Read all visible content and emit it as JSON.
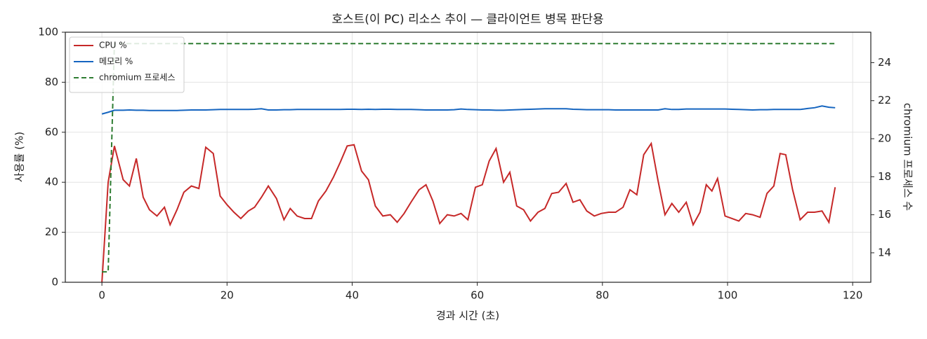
{
  "chart_data": {
    "type": "line",
    "title": "호스트(이 PC) 리소스 추이 — 클라이언트 병목 판단용",
    "x_label": "경과 시간 (초)",
    "y_label": "사용률 (%)",
    "y2_label": "chromium 프로세스 수",
    "x": [
      0,
      1.0,
      2.0,
      3.4,
      4.4,
      5.5,
      6.6,
      7.6,
      8.8,
      10.0,
      10.9,
      12.0,
      13.1,
      14.3,
      15.5,
      16.6,
      17.8,
      18.9,
      20.0,
      21.1,
      22.2,
      23.4,
      24.4,
      25.5,
      26.6,
      27.9,
      29.1,
      30.1,
      31.2,
      32.4,
      33.5,
      34.6,
      35.8,
      37.0,
      38.1,
      39.2,
      40.3,
      41.5,
      42.6,
      43.7,
      44.9,
      46.1,
      47.2,
      48.3,
      49.4,
      50.7,
      51.8,
      52.9,
      54.0,
      55.2,
      56.3,
      57.4,
      58.5,
      59.7,
      60.8,
      61.9,
      63.0,
      64.2,
      65.2,
      66.3,
      67.4,
      68.5,
      69.7,
      70.8,
      71.9,
      73.0,
      74.2,
      75.3,
      76.4,
      77.5,
      78.7,
      79.8,
      81.0,
      82.1,
      83.3,
      84.4,
      85.5,
      86.6,
      87.8,
      88.9,
      90.0,
      91.1,
      92.2,
      93.4,
      94.5,
      95.6,
      96.6,
      97.5,
      98.4,
      99.6,
      100.7,
      101.8,
      102.9,
      104.0,
      105.2,
      106.3,
      107.4,
      108.4,
      109.3,
      110.4,
      111.6,
      112.8,
      113.9,
      115.1,
      116.2,
      117.2
    ],
    "series": [
      {
        "name": "CPU %",
        "color": "#c62828",
        "axis": "y",
        "linestyle": "solid",
        "values": [
          0,
          40,
          54.5,
          41,
          38.5,
          49.5,
          34,
          29,
          26.5,
          30,
          23,
          29,
          36,
          38.5,
          37.5,
          54,
          51.5,
          34.5,
          31,
          28,
          25.5,
          28.5,
          30,
          34,
          38.5,
          33.5,
          25,
          29.5,
          26.5,
          25.5,
          25.5,
          32.5,
          36.5,
          42,
          48,
          54.5,
          55,
          44.5,
          41,
          30.5,
          26.5,
          27,
          24,
          27.5,
          32,
          37,
          39,
          32.5,
          23.5,
          27,
          26.5,
          27.5,
          25,
          38,
          39,
          48.5,
          53.5,
          40,
          44,
          30.5,
          29,
          24.5,
          28,
          29.5,
          35.5,
          36,
          39.5,
          32,
          33,
          28.5,
          26.5,
          27.5,
          28,
          28,
          30,
          37,
          35,
          51,
          55.5,
          40.5,
          27,
          31.5,
          28,
          32,
          23,
          28,
          39,
          36.5,
          41.5,
          26.5,
          25.5,
          24.5,
          27.5,
          27,
          26,
          35.5,
          38.5,
          51.5,
          51,
          37,
          25,
          28,
          28,
          28.5,
          24,
          38
        ]
      },
      {
        "name": "메모리 %",
        "color": "#1565c0",
        "axis": "y",
        "linestyle": "solid",
        "values": [
          67.3,
          68.0,
          68.8,
          68.8,
          68.9,
          68.8,
          68.8,
          68.7,
          68.7,
          68.7,
          68.7,
          68.7,
          68.8,
          68.9,
          68.9,
          68.9,
          69.0,
          69.1,
          69.1,
          69.1,
          69.1,
          69.1,
          69.2,
          69.4,
          68.9,
          68.9,
          69.0,
          69.0,
          69.1,
          69.1,
          69.1,
          69.1,
          69.1,
          69.1,
          69.1,
          69.2,
          69.2,
          69.1,
          69.2,
          69.1,
          69.2,
          69.2,
          69.1,
          69.1,
          69.1,
          69.0,
          68.9,
          68.9,
          68.9,
          68.9,
          69.0,
          69.3,
          69.1,
          69.0,
          68.9,
          68.9,
          68.8,
          68.8,
          68.9,
          69.0,
          69.1,
          69.2,
          69.3,
          69.4,
          69.4,
          69.4,
          69.4,
          69.2,
          69.1,
          69.0,
          69.0,
          69.0,
          69.0,
          68.9,
          68.9,
          68.9,
          68.9,
          68.9,
          68.9,
          68.9,
          69.4,
          69.1,
          69.1,
          69.3,
          69.3,
          69.3,
          69.3,
          69.3,
          69.3,
          69.3,
          69.2,
          69.1,
          69.0,
          68.9,
          69.0,
          69.0,
          69.1,
          69.1,
          69.1,
          69.1,
          69.1,
          69.5,
          69.8,
          70.5,
          70.0,
          69.8
        ]
      },
      {
        "name": "chromium 프로세스",
        "color": "#2e7d32",
        "axis": "y2",
        "linestyle": "dashed",
        "values": [
          13,
          13,
          25,
          25,
          25,
          25,
          25,
          25,
          25,
          25,
          25,
          25,
          25,
          25,
          25,
          25,
          25,
          25,
          25,
          25,
          25,
          25,
          25,
          25,
          25,
          25,
          25,
          25,
          25,
          25,
          25,
          25,
          25,
          25,
          25,
          25,
          25,
          25,
          25,
          25,
          25,
          25,
          25,
          25,
          25,
          25,
          25,
          25,
          25,
          25,
          25,
          25,
          25,
          25,
          25,
          25,
          25,
          25,
          25,
          25,
          25,
          25,
          25,
          25,
          25,
          25,
          25,
          25,
          25,
          25,
          25,
          25,
          25,
          25,
          25,
          25,
          25,
          25,
          25,
          25,
          25,
          25,
          25,
          25,
          25,
          25,
          25,
          25,
          25,
          25,
          25,
          25,
          25,
          25,
          25,
          25,
          25,
          25,
          25,
          25,
          25,
          25,
          25,
          25,
          25,
          25
        ]
      }
    ],
    "xlim": [
      -5.85,
      122.9
    ],
    "xticks": [
      0,
      20,
      40,
      60,
      80,
      100,
      120
    ],
    "ylim": [
      0,
      100
    ],
    "yticks": [
      0,
      20,
      40,
      60,
      80,
      100
    ],
    "y2lim": [
      12.45,
      25.6
    ],
    "y2ticks": [
      14,
      16,
      18,
      20,
      22,
      24
    ],
    "grid": true,
    "legend": "upper-left"
  }
}
